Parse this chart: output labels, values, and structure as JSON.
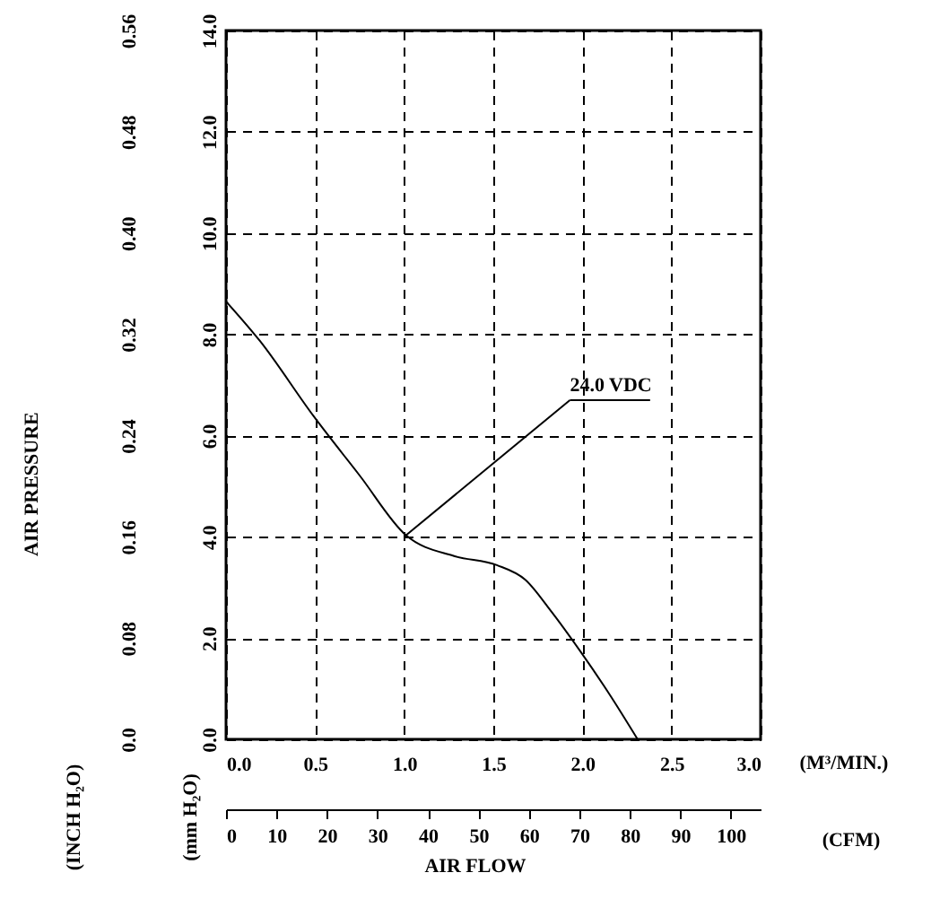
{
  "chart_data": {
    "type": "line",
    "ylabel": "(mm H₂O)",
    "y2label": "(INCH H₂O)",
    "xlabel": "(M³/MIN.)",
    "x2label": "(CFM)",
    "x": [
      0,
      0.19,
      0.49,
      0.75,
      1.01,
      1.28,
      1.52,
      1.68,
      1.82,
      1.99,
      2.15,
      2.31
    ],
    "series": [
      {
        "color": "#000000",
        "values": [
          8.65,
          7.87,
          6.39,
          5.21,
          4.03,
          3.62,
          3.44,
          3.15,
          2.55,
          1.73,
          0.9,
          0
        ]
      }
    ],
    "xlim": [
      0,
      3
    ],
    "xticks": [
      {
        "value": 0,
        "label": "0.0"
      },
      0.5,
      {
        "value": 1,
        "label": "1.0"
      },
      1.5,
      {
        "value": 2,
        "label": "2.0"
      },
      2.5,
      {
        "value": 3,
        "label": "3.0"
      }
    ],
    "x2lim": [
      0,
      105.9
    ],
    "x2ticks": [
      0,
      10,
      20,
      30,
      40,
      50,
      60,
      70,
      80,
      90,
      100
    ],
    "ylim": [
      0,
      14
    ],
    "yticks": [
      {
        "value": 0,
        "label": "0.0"
      },
      {
        "value": 2,
        "label": "2.0"
      },
      {
        "value": 4,
        "label": "4.0"
      },
      {
        "value": 6,
        "label": "6.0"
      },
      {
        "value": 8,
        "label": "8.0"
      },
      {
        "value": 10,
        "label": "10.0"
      },
      {
        "value": 12,
        "label": "12.0"
      },
      {
        "value": 14,
        "label": "14.0"
      }
    ],
    "y2lim": [
      0,
      0.56
    ],
    "y2ticks": [
      {
        "value": 0,
        "label": "0.0"
      },
      0.08,
      0.16,
      0.24,
      0.32,
      {
        "value": 0.4,
        "label": "0.40"
      },
      0.48,
      0.56
    ],
    "annotations": [
      {
        "text": "24.0 VDC",
        "x": 1.0,
        "y": 4.0
      },
      "AIR PRESSURE",
      "AIR FLOW"
    ],
    "grid": true,
    "line_style": "solid",
    "marker": "none"
  }
}
